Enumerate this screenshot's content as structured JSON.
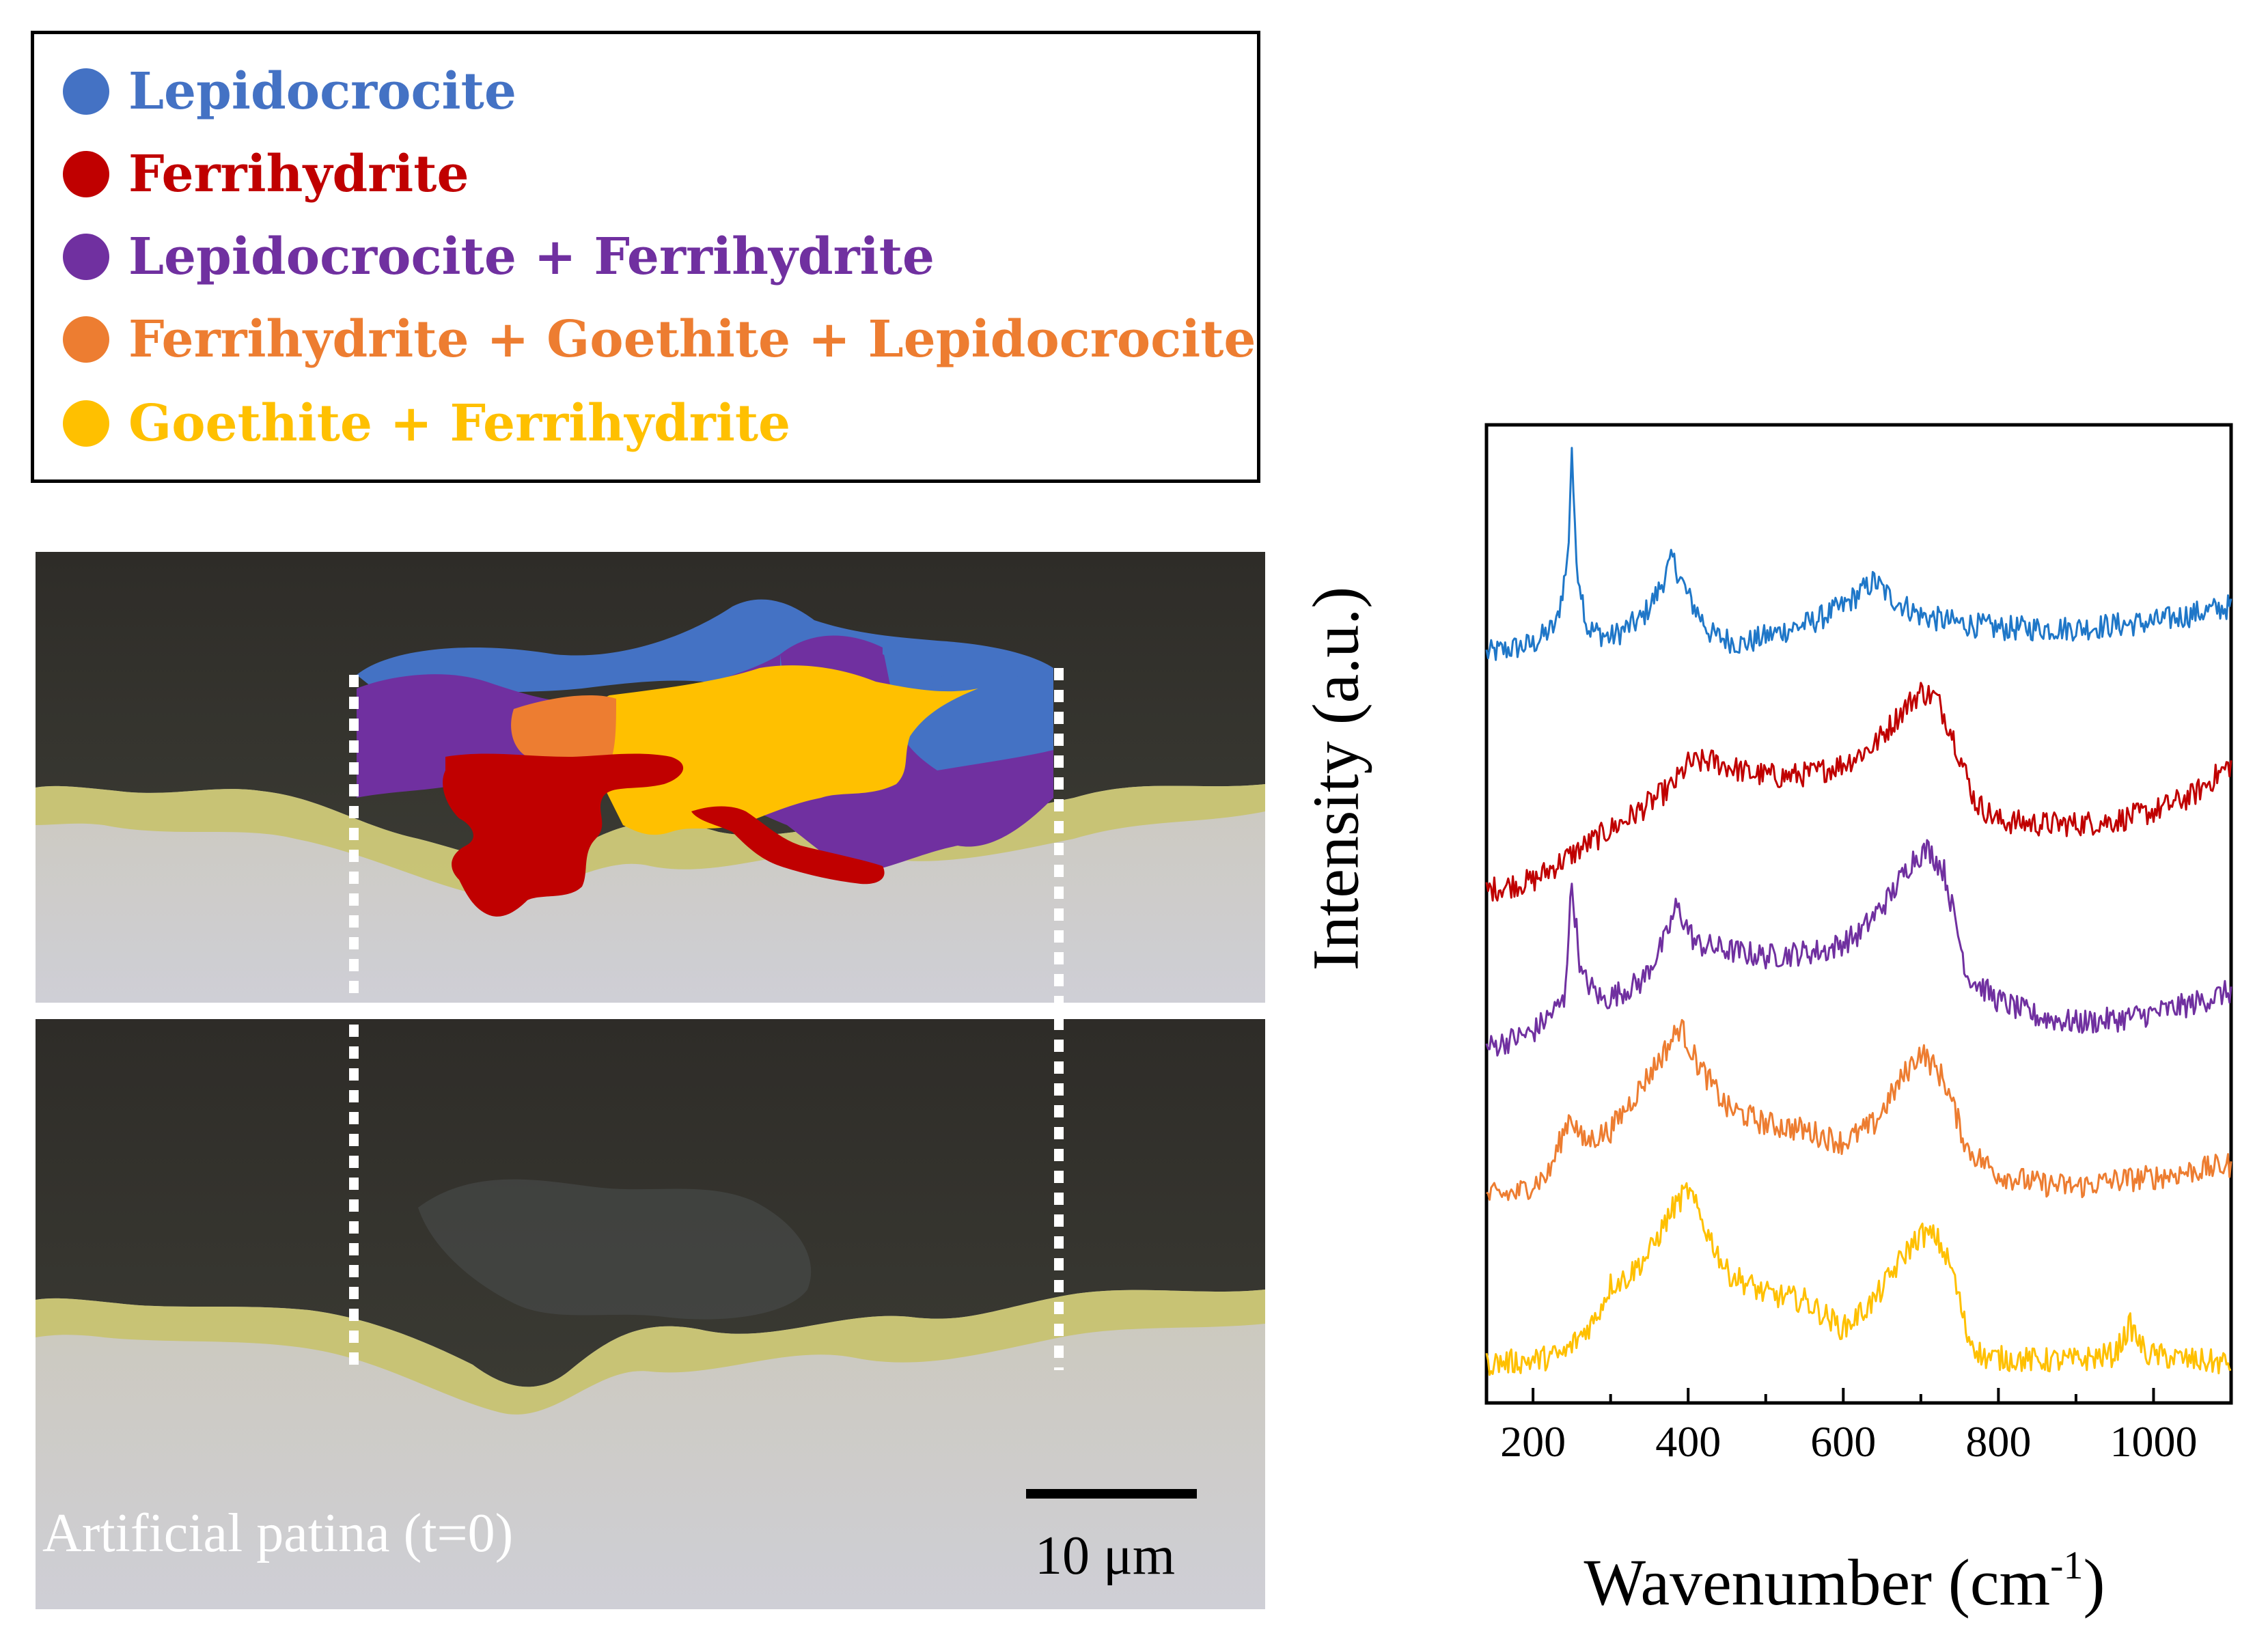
{
  "legend": {
    "items": [
      {
        "label": "Lepidocrocite",
        "color": "#4472C4"
      },
      {
        "label": "Ferrihydrite",
        "color": "#C00000"
      },
      {
        "label": "Lepidocrocite + Ferrihydrite",
        "color": "#7030A0"
      },
      {
        "label": "Ferrihydrite + Goethite + Lepidocrocite",
        "color": "#ED7D31"
      },
      {
        "label": "Goethite + Ferrihydrite",
        "color": "#FFC000"
      }
    ]
  },
  "micrograph": {
    "caption": "Artificial patina (t=0)",
    "scale_bar_label": "10 μm"
  },
  "chart_data": {
    "type": "line",
    "xlabel": "Wavenumber (cm",
    "xlabel_sup": "-1",
    "xlabel_end": ")",
    "ylabel": "Intensity (a.u.)",
    "xlim": [
      140,
      1100
    ],
    "ylim": [
      0,
      6.2
    ],
    "x_ticks": [
      200,
      400,
      600,
      800,
      1000
    ],
    "x_tick_labels": [
      "200",
      "400",
      "600",
      "800",
      "1000"
    ],
    "y_ticks_shown": false,
    "series": [
      {
        "name": "Lepidocrocite",
        "color": "#1F77C8",
        "offset": 4.75,
        "x": [
          140,
          200,
          230,
          245,
          250,
          255,
          270,
          300,
          340,
          360,
          380,
          400,
          430,
          470,
          520,
          560,
          600,
          640,
          660,
          700,
          740,
          800,
          900,
          1000,
          1100
        ],
        "y": [
          0.0,
          0.06,
          0.18,
          0.6,
          1.32,
          0.62,
          0.16,
          0.1,
          0.22,
          0.38,
          0.6,
          0.36,
          0.12,
          0.06,
          0.14,
          0.2,
          0.3,
          0.46,
          0.36,
          0.24,
          0.2,
          0.16,
          0.16,
          0.2,
          0.3
        ]
      },
      {
        "name": "Ferrihydrite",
        "color": "#C00000",
        "offset": 3.25,
        "x": [
          140,
          200,
          260,
          330,
          380,
          400,
          430,
          480,
          520,
          560,
          600,
          640,
          680,
          700,
          720,
          740,
          770,
          800,
          850,
          900,
          950,
          1000,
          1050,
          1100
        ],
        "y": [
          0.0,
          0.06,
          0.26,
          0.48,
          0.66,
          0.8,
          0.82,
          0.74,
          0.72,
          0.74,
          0.8,
          0.92,
          1.16,
          1.26,
          1.22,
          1.0,
          0.56,
          0.44,
          0.42,
          0.42,
          0.44,
          0.5,
          0.6,
          0.8
        ]
      },
      {
        "name": "Lepidocrocite + Ferrihydrite",
        "color": "#7030A0",
        "offset": 2.25,
        "x": [
          140,
          200,
          240,
          250,
          262,
          290,
          340,
          370,
          385,
          410,
          450,
          500,
          540,
          580,
          620,
          660,
          690,
          710,
          730,
          760,
          800,
          850,
          900,
          950,
          1000,
          1050,
          1100
        ],
        "y": [
          0.0,
          0.1,
          0.3,
          1.04,
          0.46,
          0.3,
          0.42,
          0.68,
          0.9,
          0.66,
          0.62,
          0.58,
          0.6,
          0.62,
          0.72,
          0.96,
          1.2,
          1.26,
          1.12,
          0.46,
          0.3,
          0.2,
          0.16,
          0.18,
          0.22,
          0.28,
          0.36
        ]
      },
      {
        "name": "Ferrihydrite + Goethite + Lepidocrocite",
        "color": "#ED7D31",
        "offset": 1.25,
        "x": [
          140,
          180,
          220,
          248,
          265,
          300,
          340,
          370,
          390,
          410,
          450,
          500,
          550,
          600,
          640,
          680,
          700,
          730,
          760,
          800,
          850,
          900,
          950,
          1000,
          1050,
          1100
        ],
        "y": [
          0.06,
          0.08,
          0.2,
          0.58,
          0.4,
          0.48,
          0.76,
          0.98,
          1.14,
          0.92,
          0.62,
          0.52,
          0.48,
          0.4,
          0.52,
          0.84,
          0.98,
          0.8,
          0.36,
          0.2,
          0.14,
          0.12,
          0.16,
          0.18,
          0.22,
          0.26
        ]
      },
      {
        "name": "Goethite + Ferrihydrite",
        "color": "#FFC000",
        "offset": 0.25,
        "x": [
          140,
          200,
          240,
          280,
          300,
          320,
          350,
          380,
          400,
          420,
          450,
          500,
          550,
          600,
          640,
          680,
          700,
          720,
          740,
          760,
          780,
          850,
          900,
          950,
          970,
          990,
          1050,
          1100
        ],
        "y": [
          0.0,
          0.02,
          0.06,
          0.28,
          0.5,
          0.54,
          0.7,
          0.98,
          1.1,
          0.88,
          0.58,
          0.44,
          0.4,
          0.22,
          0.4,
          0.7,
          0.82,
          0.8,
          0.6,
          0.18,
          0.04,
          0.02,
          0.02,
          0.06,
          0.24,
          0.06,
          0.02,
          0.0
        ]
      }
    ]
  }
}
